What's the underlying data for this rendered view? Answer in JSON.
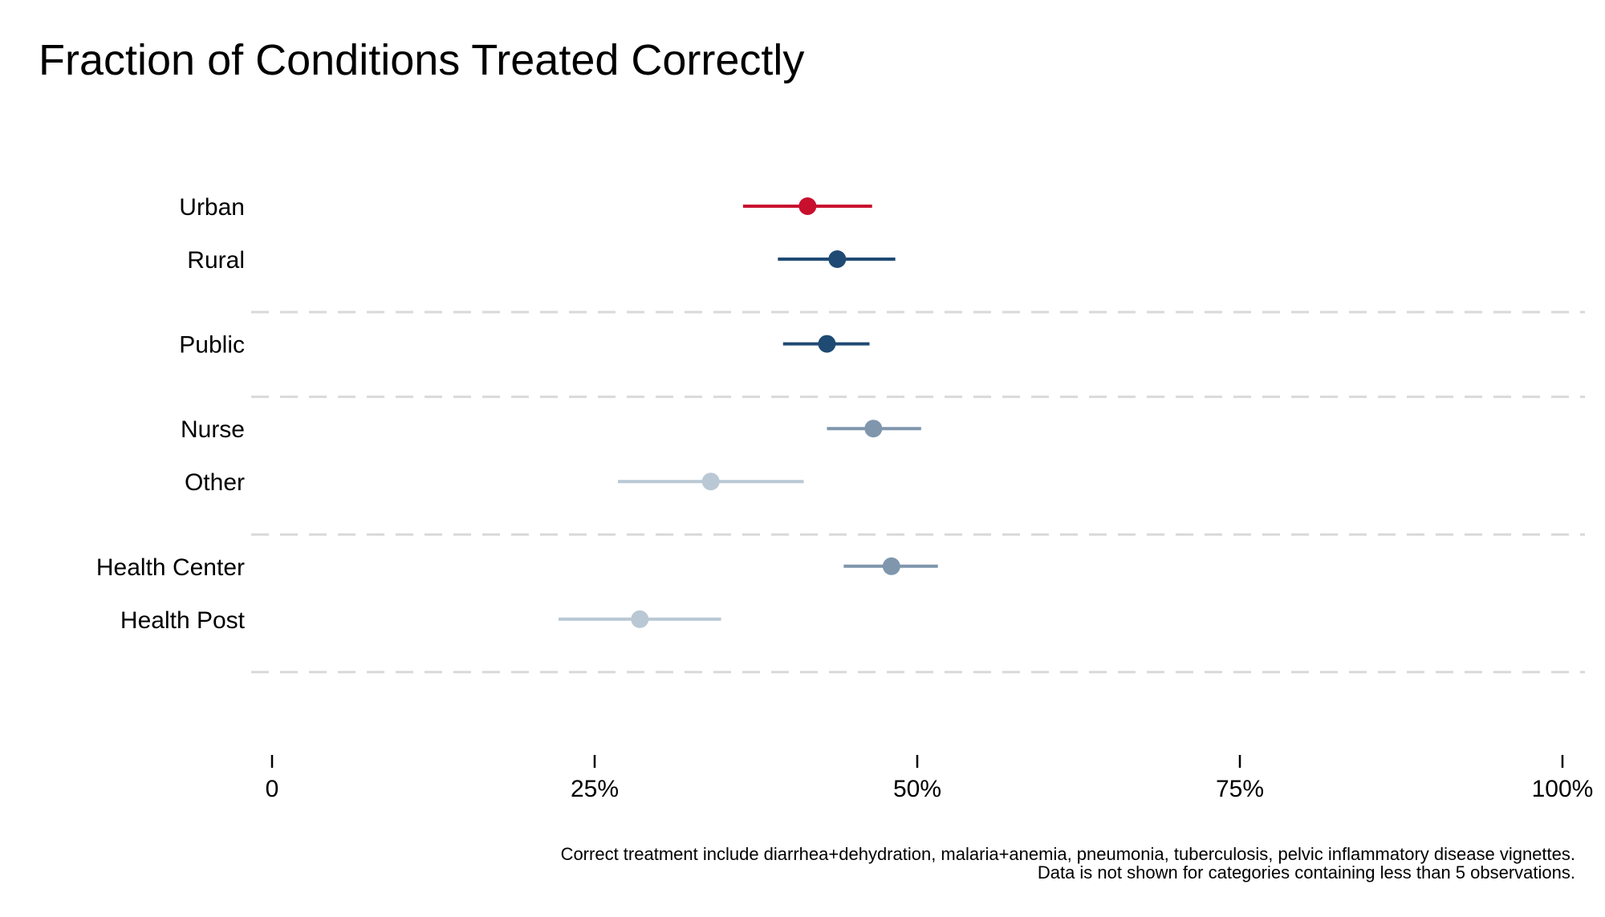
{
  "chart_data": {
    "type": "scatter",
    "title": "Fraction of Conditions Treated Correctly",
    "xlabel": "",
    "ylabel": "",
    "xlim": [
      0,
      100
    ],
    "x_ticks": [
      0,
      25,
      50,
      75,
      100
    ],
    "x_tick_labels": [
      "0",
      "25%",
      "50%",
      "75%",
      "100%"
    ],
    "grid": false,
    "colors": {
      "urban": "#c8102e",
      "dark_blue": "#1f4a73",
      "mid_blue": "#7f96ad",
      "light_blue": "#b9c8d4"
    },
    "groups": [
      {
        "items": [
          {
            "label": "Urban",
            "estimate": 41.5,
            "ci": [
              36.5,
              46.5
            ],
            "color": "#c8102e"
          },
          {
            "label": "Rural",
            "estimate": 43.8,
            "ci": [
              39.2,
              48.3
            ],
            "color": "#1f4a73"
          }
        ]
      },
      {
        "items": [
          {
            "label": "Public",
            "estimate": 43.0,
            "ci": [
              39.6,
              46.3
            ],
            "color": "#1f4a73"
          }
        ]
      },
      {
        "items": [
          {
            "label": "Nurse",
            "estimate": 46.6,
            "ci": [
              43.0,
              50.3
            ],
            "color": "#7f96ad"
          },
          {
            "label": "Other",
            "estimate": 34.0,
            "ci": [
              26.8,
              41.2
            ],
            "color": "#b9c8d4"
          }
        ]
      },
      {
        "items": [
          {
            "label": "Health Center",
            "estimate": 48.0,
            "ci": [
              44.3,
              51.6
            ],
            "color": "#7f96ad"
          },
          {
            "label": "Health Post",
            "estimate": 28.5,
            "ci": [
              22.2,
              34.8
            ],
            "color": "#b9c8d4"
          }
        ]
      }
    ],
    "notes": [
      "Correct treatment include diarrhea+dehydration, malaria+anemia, pneumonia, tuberculosis, pelvic inflammatory disease vignettes.",
      "Data is not shown for categories containing less than 5 observations."
    ]
  }
}
